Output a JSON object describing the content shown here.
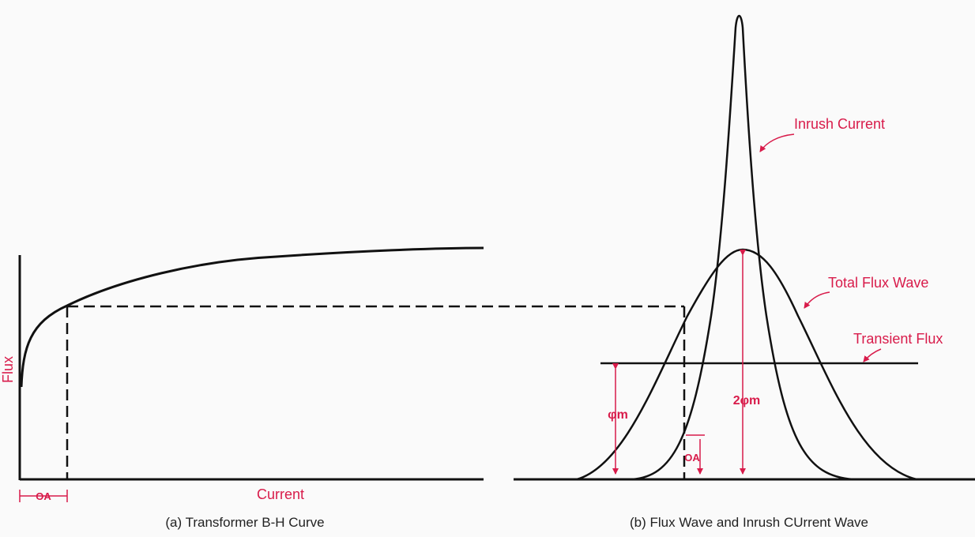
{
  "colors": {
    "label": "#d81b4a",
    "line": "#111111",
    "background": "#fafafa"
  },
  "left_panel": {
    "axis_y_label": "Flux",
    "axis_x_label": "Current",
    "oa_marker": "OA",
    "caption": "(a) Transformer B-H Curve"
  },
  "right_panel": {
    "inrush_label": "Inrush Current",
    "total_flux_label": "Total Flux Wave",
    "transient_label": "Transient Flux",
    "phi_m_label": "φm",
    "two_phi_m_label": "2φm",
    "oa_marker": "OA",
    "caption": "(b) Flux Wave and Inrush CUrrent Wave"
  }
}
